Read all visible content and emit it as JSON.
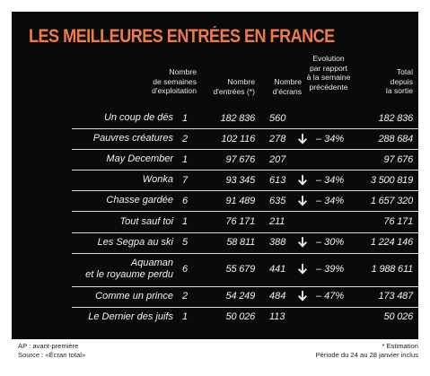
{
  "title": "LES MEILLEURES ENTRÉES EN FRANCE",
  "headers": {
    "weeks": [
      "Nombre",
      "de semaines",
      "d'exploitation"
    ],
    "entries": [
      "Nombre",
      "d'entrées (*)"
    ],
    "screens": [
      "Nombre",
      "d'écrans"
    ],
    "evolution": [
      "Evolution",
      "par rapport",
      "à la semaine",
      "précédente"
    ],
    "total": [
      "Total",
      "depuis",
      "la sortie"
    ]
  },
  "rows": [
    {
      "title": [
        "Un coup de dés"
      ],
      "weeks": "1",
      "entries": "182 836",
      "screens": "560",
      "down": false,
      "evolution": "",
      "total": "182 836"
    },
    {
      "title": [
        "Pauvres créatures"
      ],
      "weeks": "2",
      "entries": "102 116",
      "screens": "278",
      "down": true,
      "evolution": "– 34%",
      "total": "288 684"
    },
    {
      "title": [
        "May December"
      ],
      "weeks": "1",
      "entries": "97 676",
      "screens": "207",
      "down": false,
      "evolution": "",
      "total": "97 676"
    },
    {
      "title": [
        "Wonka"
      ],
      "weeks": "7",
      "entries": "93 345",
      "screens": "613",
      "down": true,
      "evolution": "– 34%",
      "total": "3 500 819"
    },
    {
      "title": [
        "Chasse gardée"
      ],
      "weeks": "6",
      "entries": "91 489",
      "screens": "635",
      "down": true,
      "evolution": "– 34%",
      "total": "1 657 320"
    },
    {
      "title": [
        "Tout sauf toi"
      ],
      "weeks": "1",
      "entries": "76 171",
      "screens": "211",
      "down": false,
      "evolution": "",
      "total": "76 171"
    },
    {
      "title": [
        "Les Segpa au ski"
      ],
      "weeks": "5",
      "entries": "58 811",
      "screens": "388",
      "down": true,
      "evolution": "– 30%",
      "total": "1 224 146"
    },
    {
      "title": [
        "Aquaman",
        "et le royaume perdu"
      ],
      "weeks": "6",
      "entries": "55 679",
      "screens": "441",
      "down": true,
      "evolution": "– 39%",
      "total": "1 988 611"
    },
    {
      "title": [
        "Comme un prince"
      ],
      "weeks": "2",
      "entries": "54 249",
      "screens": "484",
      "down": true,
      "evolution": "– 47%",
      "total": "173 487"
    },
    {
      "title": [
        "Le Dernier des juifs"
      ],
      "weeks": "1",
      "entries": "50 026",
      "screens": "113",
      "down": false,
      "evolution": "",
      "total": "50 026"
    }
  ],
  "footer": {
    "left": [
      "AP : avant-première",
      "Source : «Écran total»"
    ],
    "right": [
      "* Estimation",
      "Période du 24 au 28 janvier inclus"
    ]
  },
  "colors": {
    "title": "#f07a49",
    "background": "#0a0a0a",
    "text": "#f2f2f2"
  },
  "icons": {
    "trend": "arrow-down-icon"
  }
}
